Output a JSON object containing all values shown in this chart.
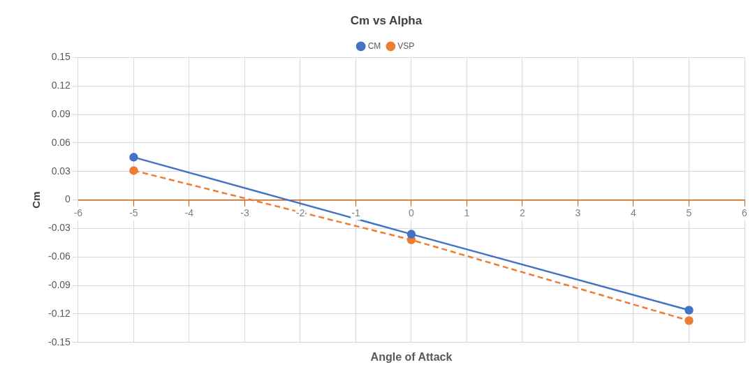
{
  "chart_data": {
    "type": "line",
    "title": "Cm vs Alpha",
    "xlabel": "Angle of Attack",
    "ylabel": "Cm",
    "x": [
      -5,
      0,
      5
    ],
    "series": [
      {
        "name": "CM",
        "color": "#4472c4",
        "values": [
          0.045,
          -0.036,
          -0.116
        ],
        "line_style": "solid"
      },
      {
        "name": "VSP",
        "color": "#ed7d31",
        "values": [
          0.031,
          -0.042,
          -0.127
        ],
        "line_style": "dashed"
      }
    ],
    "xlim": [
      -6,
      6
    ],
    "xticks": [
      -6,
      -5,
      -4,
      -3,
      -2,
      -1,
      0,
      1,
      2,
      3,
      4,
      5,
      6
    ],
    "ylim": [
      -0.15,
      0.15
    ],
    "yticks": [
      -0.15,
      -0.12,
      -0.09,
      -0.06,
      -0.03,
      0,
      0.03,
      0.06,
      0.09,
      0.12,
      0.15
    ],
    "grid": true,
    "legend": "top",
    "marker": "circle"
  }
}
